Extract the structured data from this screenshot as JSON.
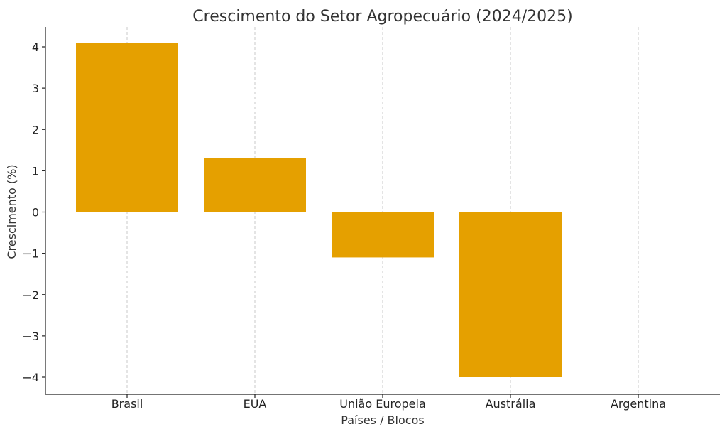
{
  "chart_data": {
    "type": "bar",
    "title": "Crescimento do Setor Agropecuário (2024/2025)",
    "xlabel": "Países / Blocos",
    "ylabel": "Crescimento (%)",
    "categories": [
      "Brasil",
      "EUA",
      "União Europeia",
      "Austrália",
      "Argentina"
    ],
    "values": [
      4.1,
      1.3,
      -1.1,
      -4.0,
      0
    ],
    "ylim": [
      -4.4,
      4.5
    ],
    "yticks": [
      4,
      3,
      2,
      1,
      0,
      -1,
      -2,
      -3,
      -4
    ],
    "ytick_labels": [
      "4",
      "3",
      "2",
      "1",
      "0",
      "−1",
      "−2",
      "−3",
      "−4"
    ],
    "bar_color": "#e5a000",
    "grid_x": true
  }
}
